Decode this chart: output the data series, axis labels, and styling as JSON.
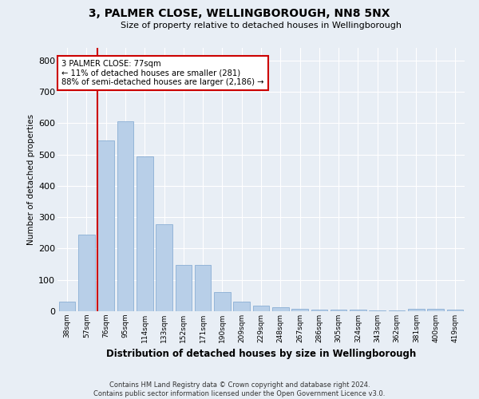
{
  "title1": "3, PALMER CLOSE, WELLINGBOROUGH, NN8 5NX",
  "title2": "Size of property relative to detached houses in Wellingborough",
  "xlabel": "Distribution of detached houses by size in Wellingborough",
  "ylabel": "Number of detached properties",
  "categories": [
    "38sqm",
    "57sqm",
    "76sqm",
    "95sqm",
    "114sqm",
    "133sqm",
    "152sqm",
    "171sqm",
    "190sqm",
    "209sqm",
    "229sqm",
    "248sqm",
    "267sqm",
    "286sqm",
    "305sqm",
    "324sqm",
    "343sqm",
    "362sqm",
    "381sqm",
    "400sqm",
    "419sqm"
  ],
  "values": [
    30,
    245,
    545,
    605,
    493,
    277,
    148,
    148,
    62,
    30,
    18,
    12,
    8,
    5,
    5,
    4,
    3,
    2,
    8,
    8,
    5
  ],
  "bar_color": "#b8cfe8",
  "bar_edge_color": "#8aafd4",
  "property_line_x": 1.575,
  "property_line_color": "#cc0000",
  "annotation_line1": "3 PALMER CLOSE: 77sqm",
  "annotation_line2": "← 11% of detached houses are smaller (281)",
  "annotation_line3": "88% of semi-detached houses are larger (2,186) →",
  "annotation_box_color": "#ffffff",
  "annotation_box_edge": "#cc0000",
  "footer1": "Contains HM Land Registry data © Crown copyright and database right 2024.",
  "footer2": "Contains public sector information licensed under the Open Government Licence v3.0.",
  "background_color": "#e8eef5",
  "ylim": [
    0,
    840
  ],
  "yticks": [
    0,
    100,
    200,
    300,
    400,
    500,
    600,
    700,
    800
  ]
}
